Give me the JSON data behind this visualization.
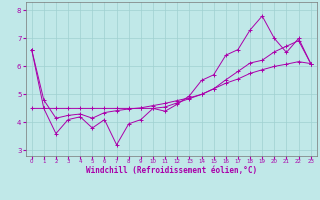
{
  "xlabel": "Windchill (Refroidissement éolien,°C)",
  "xlim": [
    -0.5,
    23.5
  ],
  "ylim": [
    2.8,
    8.3
  ],
  "xticks": [
    0,
    1,
    2,
    3,
    4,
    5,
    6,
    7,
    8,
    9,
    10,
    11,
    12,
    13,
    14,
    15,
    16,
    17,
    18,
    19,
    20,
    21,
    22,
    23
  ],
  "yticks": [
    3,
    4,
    5,
    6,
    7,
    8
  ],
  "bg_color": "#c0e8e8",
  "line_color": "#aa00aa",
  "grid_color": "#a0d0d0",
  "line1_x": [
    0,
    1,
    2,
    3,
    4,
    5,
    6,
    7,
    8,
    9,
    10,
    11,
    12,
    13,
    14,
    15,
    16,
    17,
    18,
    19,
    20,
    21,
    22,
    23
  ],
  "line1_y": [
    6.6,
    4.5,
    3.6,
    4.1,
    4.2,
    3.8,
    4.1,
    3.2,
    3.95,
    4.1,
    4.5,
    4.4,
    4.65,
    4.95,
    5.5,
    5.7,
    6.4,
    6.6,
    7.3,
    7.8,
    7.0,
    6.5,
    7.0,
    6.1
  ],
  "line2_x": [
    0,
    1,
    2,
    3,
    4,
    5,
    6,
    7,
    8,
    9,
    10,
    11,
    12,
    13,
    14,
    15,
    16,
    17,
    18,
    19,
    20,
    21,
    22,
    23
  ],
  "line2_y": [
    4.5,
    4.5,
    4.5,
    4.5,
    4.5,
    4.5,
    4.5,
    4.5,
    4.5,
    4.5,
    4.5,
    4.55,
    4.7,
    4.85,
    5.0,
    5.2,
    5.4,
    5.55,
    5.75,
    5.88,
    6.0,
    6.08,
    6.17,
    6.1
  ],
  "line3_x": [
    0,
    1,
    2,
    3,
    4,
    5,
    6,
    7,
    8,
    9,
    10,
    11,
    12,
    13,
    14,
    15,
    16,
    17,
    18,
    19,
    20,
    21,
    22,
    23
  ],
  "line3_y": [
    6.6,
    4.8,
    4.15,
    4.25,
    4.3,
    4.15,
    4.35,
    4.42,
    4.48,
    4.52,
    4.6,
    4.68,
    4.78,
    4.88,
    5.0,
    5.2,
    5.52,
    5.82,
    6.12,
    6.22,
    6.52,
    6.72,
    6.92,
    6.1
  ]
}
